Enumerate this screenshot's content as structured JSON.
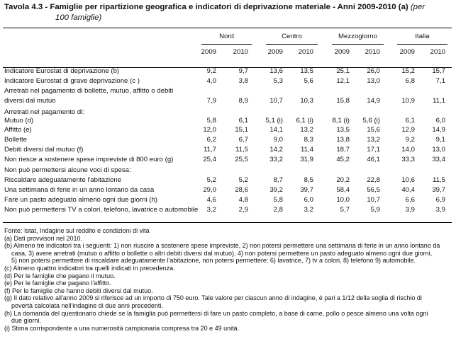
{
  "title": {
    "label": "Tavola 4.3 - Famiglie per ripartizione geografica e indicatori di deprivazione materiale - Anni 2009-2010 (a)",
    "unit_a": "(per",
    "unit_b": "100 famiglie)"
  },
  "columns": {
    "groups": [
      "Nord",
      "Centro",
      "Mezzogiorno",
      "Italia"
    ],
    "years": [
      "2009",
      "2010",
      "2009",
      "2010",
      "2009",
      "2010",
      "2009",
      "2010"
    ]
  },
  "rows": [
    {
      "label": "Indicatore Eurostat di deprivazione (b)",
      "values": [
        "9,2",
        "9,7",
        "13,6",
        "13,5",
        "25,1",
        "26,0",
        "15,2",
        "15,7"
      ]
    },
    {
      "label": "Indicatore Eurostat di grave deprivazione (c )",
      "values": [
        "4,0",
        "3,8",
        "5,3",
        "5,6",
        "12,1",
        "13,0",
        "6,8",
        "7,1"
      ]
    },
    {
      "label": "Arretrati nel pagamento di bollette, mutuo, affitto o debiti",
      "values": []
    },
    {
      "label": "diversi dal mutuo",
      "values": [
        "7,9",
        "8,9",
        "10,7",
        "10,3",
        "15,8",
        "14,9",
        "10,9",
        "11,1"
      ]
    },
    {
      "label": "Arretrati nel pagamento di:",
      "values": []
    },
    {
      "label": "Mutuo (d)",
      "values": [
        "5,8",
        "6,1",
        "5,1 (i)",
        "6,1 (i)",
        "8,1 (i)",
        "5,6 (i)",
        "6,1",
        "6,0"
      ]
    },
    {
      "label": "Affitto (e)",
      "values": [
        "12,0",
        "15,1",
        "14,1",
        "13,2",
        "13,5",
        "15,6",
        "12,9",
        "14,9"
      ]
    },
    {
      "label": "Bollette",
      "values": [
        "6,2",
        "6,7",
        "9,0",
        "8,3",
        "13,8",
        "13,2",
        "9,2",
        "9,1"
      ]
    },
    {
      "label": "Debiti diversi dal mutuo (f)",
      "values": [
        "11,7",
        "11,5",
        "14,2",
        "11,4",
        "18,7",
        "17,1",
        "14,0",
        "13,0"
      ]
    },
    {
      "label": "Non riesce a sostenere spese impreviste di 800 euro (g)",
      "values": [
        "25,4",
        "25,5",
        "33,2",
        "31,9",
        "45,2",
        "46,1",
        "33,3",
        "33,4"
      ]
    },
    {
      "label": "Non può permettersi alcune voci di spesa:",
      "values": []
    },
    {
      "label": "Riscaldare adeguatamente l'abitazione",
      "values": [
        "5,2",
        "5,2",
        "8,7",
        "8,5",
        "20,2",
        "22,8",
        "10,6",
        "11,5"
      ]
    },
    {
      "label": "Una settimana di ferie in un anno lontano da casa",
      "values": [
        "29,0",
        "28,6",
        "39,2",
        "39,7",
        "58,4",
        "56,5",
        "40,4",
        "39,7"
      ]
    },
    {
      "label": "Fare un pasto adeguato almeno ogni due giorni (h)",
      "values": [
        "4,6",
        "4,8",
        "5,8",
        "6,0",
        "10,0",
        "10,7",
        "6,6",
        "6,9"
      ]
    },
    {
      "label": "Non può permettersi TV a colori, telefono, lavatrice o automobile",
      "values": [
        "3,2",
        "2,9",
        "2,8",
        "3,2",
        "5,7",
        "5,9",
        "3,9",
        "3,9"
      ]
    }
  ],
  "footnotes": [
    {
      "text": "Fonte: Istat, Indagine sul reddito e condizioni di vita",
      "indent": false
    },
    {
      "text": "(a) Dati provvisori nel 2010.",
      "indent": false
    },
    {
      "text": "(b) Almeno tre indicatori tra i seguenti: 1) non riuscire a sostenere spese impreviste, 2) non potersi permettere una settimana di ferie in un anno lontano da",
      "indent": false
    },
    {
      "text": "casa, 3) avere arretrati (mutuo o affitto o bollette o altri debiti diversi dal mutuo), 4) non potersi permettere un pasto adeguato almeno ogni due giorni,",
      "indent": true
    },
    {
      "text": "5) non potersi permettere di riscaldare adeguatamente l'abitazione, non potersi permettere: 6) lavatrice, 7) tv a colori, 8) telefono 9) automobile.",
      "indent": true
    },
    {
      "text": "(c) Almeno quattro indicatori tra quelli indicati in precedenza.",
      "indent": false
    },
    {
      "text": "(d) Per le famiglie che pagano il mutuo.",
      "indent": false
    },
    {
      "text": "(e) Per le famiglie che pagano l'affitto.",
      "indent": false
    },
    {
      "text": "(f) Per le famiglie che hanno debiti diversi dal mutuo.",
      "indent": false
    },
    {
      "text": "(g) Il dato relativo all'anno 2009 si riferisce ad un importo di 750 euro. Tale valore per ciascun anno di indagine, è pari a 1/12 della soglia di rischio di",
      "indent": false
    },
    {
      "text": "povertà calcolata nell'indagine di due anni precedenti.",
      "indent": true
    },
    {
      "text": "(h) La domanda del questionario chiede se la famiglia può permettersi di fare un pasto completo, a base di carne, pollo o pesce almeno una volta ogni",
      "indent": false
    },
    {
      "text": "due giorni.",
      "indent": true
    },
    {
      "text": "(i) Stima corrispondente a una numerosità campionaria compresa tra 20 e 49 unità.",
      "indent": false
    }
  ]
}
